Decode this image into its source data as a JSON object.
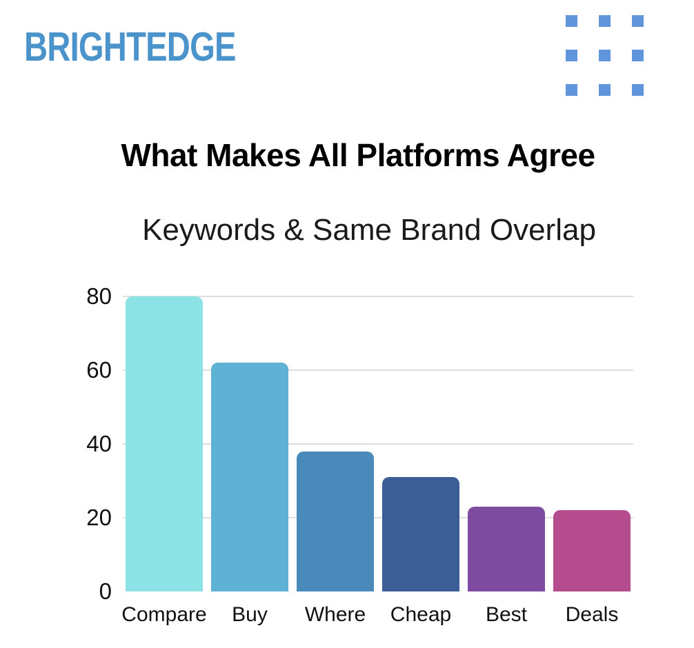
{
  "page": {
    "background": "#ffffff"
  },
  "header": {
    "logo_text": "BRIGHTEDGE",
    "logo_color": "#4B94CB",
    "dots_color": "#6095DB"
  },
  "title": "What Makes All Platforms Agree",
  "chart_data": {
    "type": "bar",
    "title": "Keywords & Same Brand Overlap",
    "categories": [
      "Compare",
      "Buy",
      "Where",
      "Cheap",
      "Best",
      "Deals"
    ],
    "values": [
      80,
      62,
      38,
      31,
      23,
      22
    ],
    "bar_colors": [
      "#8DE2E6",
      "#60B2D4",
      "#4A8ABA",
      "#3B5E96",
      "#7D4BA0",
      "#B44C8E"
    ],
    "y_ticks": [
      0,
      20,
      40,
      60,
      80
    ],
    "ylim": [
      0,
      80
    ],
    "xlabel": "",
    "ylabel": "",
    "grid": "horizontal",
    "gridline_color": "#DEDEDE",
    "legend": "none"
  }
}
